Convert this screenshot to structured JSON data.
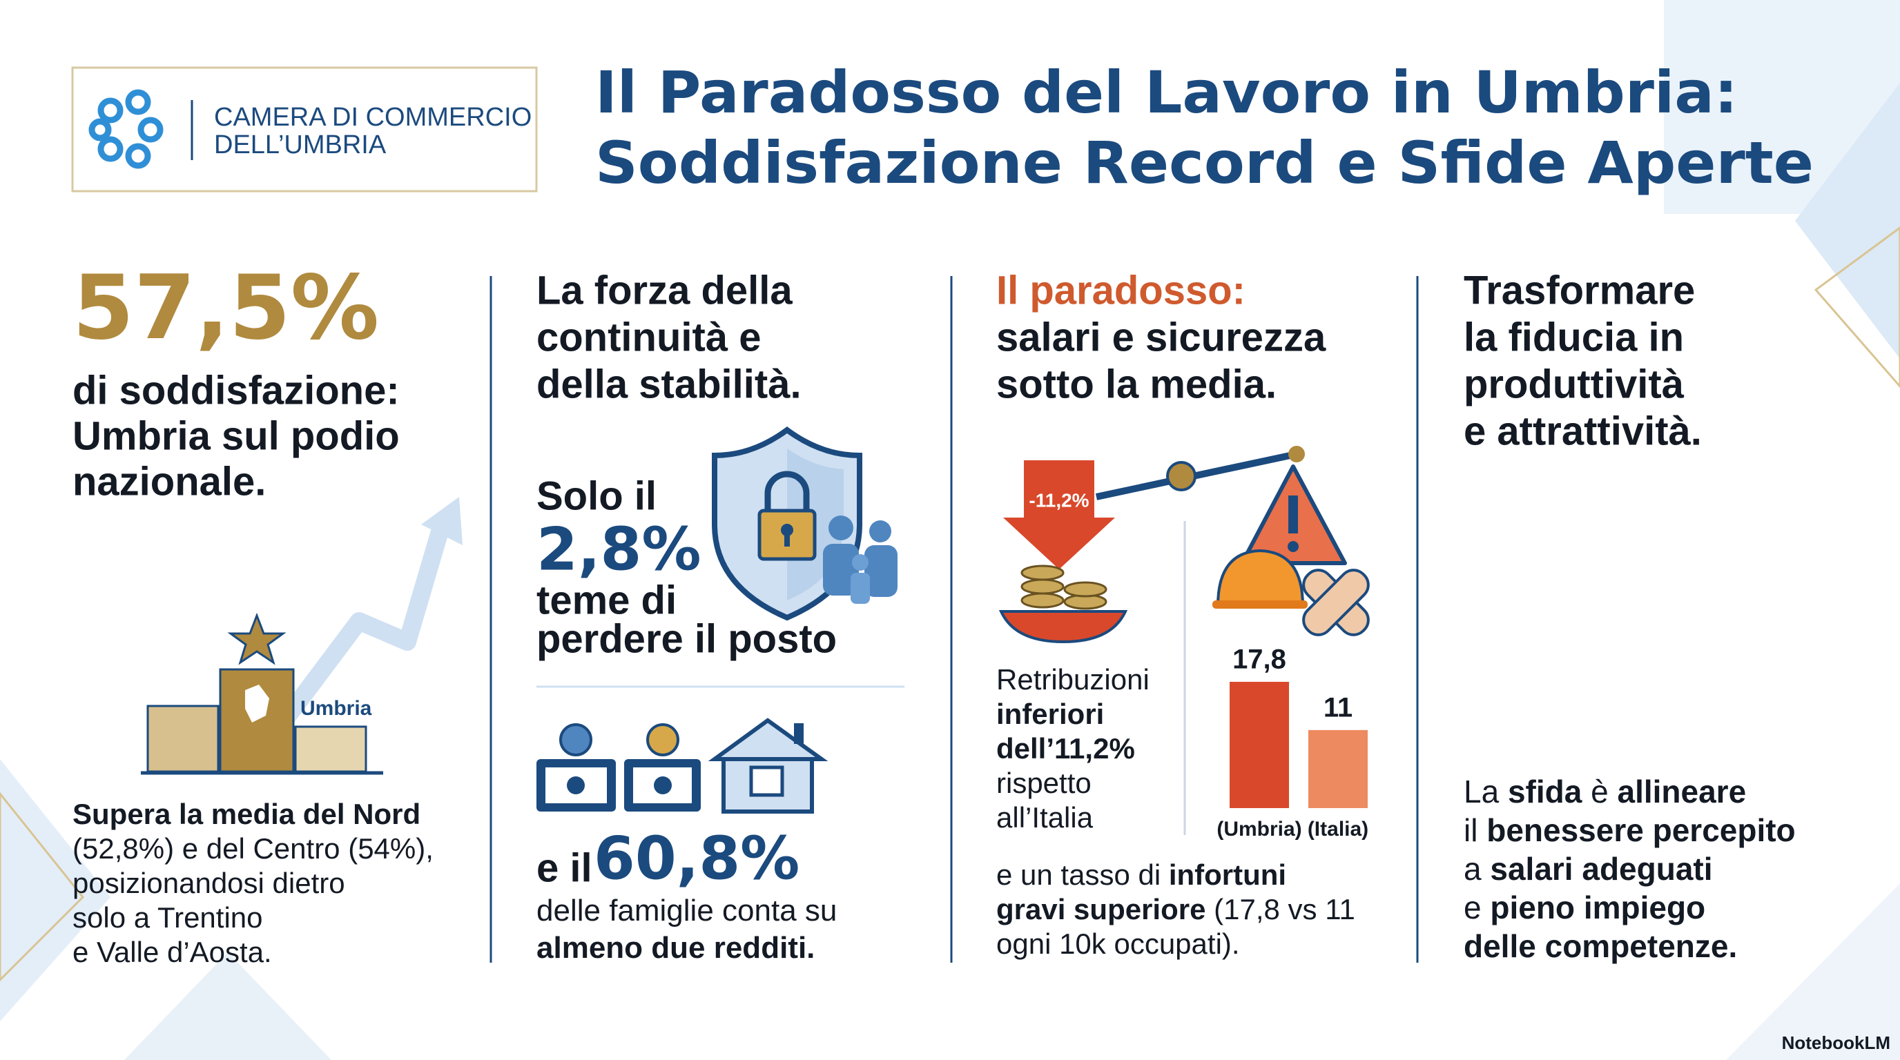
{
  "header": {
    "logo_text": [
      "CAMERA DI COMMERCIO",
      "DELL’UMBRIA"
    ],
    "title": [
      "Il Paradosso del Lavoro in Umbria:",
      "Soddisfazione Record e Sfide Aperte"
    ]
  },
  "col1": {
    "stat": "57,5%",
    "heading": [
      "di soddisfazione:",
      "Umbria sul podio",
      "nazionale."
    ],
    "podium_label": "Umbria",
    "body": [
      [
        {
          "text": "Supera la media del Nord",
          "bold": true
        }
      ],
      [
        "(52,8%) e del Centro (54%),"
      ],
      [
        "posizionandosi dietro"
      ],
      [
        "solo a Trentino"
      ],
      [
        "e Valle d’Aosta."
      ]
    ]
  },
  "col2": {
    "heading": [
      "La forza della",
      "continuità e",
      "della stabilità."
    ],
    "stat1_prefix": "Solo il",
    "stat1": "2,8%",
    "stat1_text": [
      "teme di",
      "perdere il posto"
    ],
    "stat2_prefix": "e il",
    "stat2": "60,8%",
    "stat2_text": [
      [
        "delle famiglie conta su"
      ],
      [
        {
          "text": "almeno due redditi.",
          "bold": true
        }
      ]
    ]
  },
  "col3": {
    "heading_highlight": "Il paradosso:",
    "heading": [
      "salari e sicurezza",
      "sotto la media."
    ],
    "arrow_label": "-11,2%",
    "side_text": [
      [
        "Retribuzioni"
      ],
      [
        {
          "text": "inferiori",
          "bold": true
        }
      ],
      [
        {
          "text": "dell’11,2%",
          "bold": true
        }
      ],
      [
        "rispetto"
      ],
      [
        "all’Italia"
      ]
    ],
    "bottom": [
      [
        "e un tasso di ",
        {
          "text": "infortuni",
          "bold": true
        }
      ],
      [
        {
          "text": "gravi superiore",
          "bold": true
        },
        " (17,8 vs 11"
      ],
      [
        "ogni 10k occupati)."
      ]
    ]
  },
  "col4": {
    "heading": [
      "Trasformare",
      "la fiducia in",
      "produttività",
      "e attrattività."
    ],
    "body": [
      [
        "La ",
        {
          "text": "sfida",
          "bold": true
        },
        " è ",
        {
          "text": "allineare",
          "bold": true
        }
      ],
      [
        "il ",
        {
          "text": "benessere percepito",
          "bold": true
        }
      ],
      [
        "a ",
        {
          "text": "salari adeguati",
          "bold": true
        }
      ],
      [
        "e ",
        {
          "text": "pieno impiego",
          "bold": true
        }
      ],
      [
        {
          "text": "delle competenze.",
          "bold": true
        }
      ]
    ]
  },
  "chart_data": {
    "type": "bar",
    "categories": [
      "(Umbria)",
      "(Italia)"
    ],
    "values": [
      17.8,
      11
    ],
    "value_labels": [
      "17,8",
      "11"
    ],
    "colors": [
      "#d9482b",
      "#ee8a60"
    ]
  },
  "footer": "NotebookLM"
}
